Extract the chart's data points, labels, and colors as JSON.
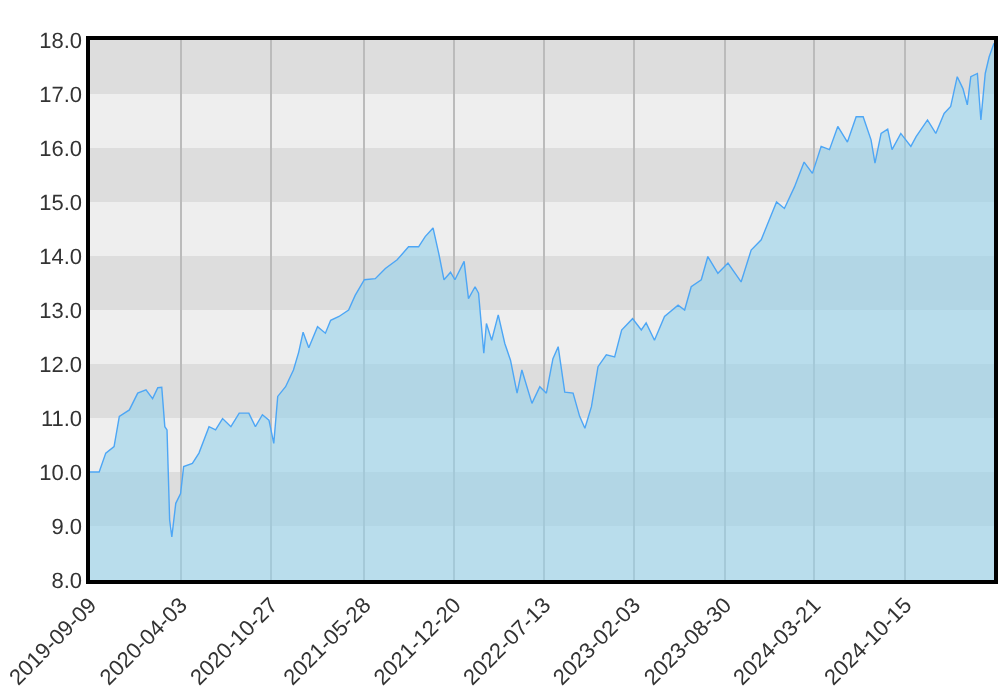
{
  "chart_data": {
    "type": "area",
    "x": [
      "2019-09-09",
      "2019-09-30",
      "2019-10-15",
      "2019-11-03",
      "2019-11-15",
      "2019-12-08",
      "2019-12-27",
      "2020-01-15",
      "2020-01-30",
      "2020-02-11",
      "2020-02-20",
      "2020-02-27",
      "2020-03-03",
      "2020-03-09",
      "2020-03-14",
      "2020-03-23",
      "2020-04-03",
      "2020-04-10",
      "2020-04-30",
      "2020-05-15",
      "2020-06-07",
      "2020-06-22",
      "2020-07-08",
      "2020-07-27",
      "2020-08-15",
      "2020-09-06",
      "2020-09-21",
      "2020-10-07",
      "2020-10-22",
      "2020-11-02",
      "2020-11-11",
      "2020-11-29",
      "2020-12-17",
      "2020-12-29",
      "2021-01-08",
      "2021-01-21",
      "2021-02-10",
      "2021-02-28",
      "2021-03-12",
      "2021-03-31",
      "2021-04-22",
      "2021-05-07",
      "2021-05-28",
      "2021-06-22",
      "2021-07-15",
      "2021-08-11",
      "2021-09-06",
      "2021-09-29",
      "2021-10-14",
      "2021-11-01",
      "2021-11-14",
      "2021-11-26",
      "2021-12-11",
      "2021-12-21",
      "2022-01-11",
      "2022-01-21",
      "2022-02-05",
      "2022-02-13",
      "2022-02-25",
      "2022-03-03",
      "2022-03-15",
      "2022-03-30",
      "2022-04-14",
      "2022-04-27",
      "2022-05-12",
      "2022-05-23",
      "2022-06-15",
      "2022-07-03",
      "2022-07-18",
      "2022-08-02",
      "2022-08-14",
      "2022-08-29",
      "2022-09-17",
      "2022-10-02",
      "2022-10-14",
      "2022-10-29",
      "2022-11-13",
      "2022-12-02",
      "2022-12-21",
      "2023-01-06",
      "2023-01-31",
      "2023-02-20",
      "2023-03-03",
      "2023-03-22",
      "2023-04-14",
      "2023-05-15",
      "2023-05-30",
      "2023-06-14",
      "2023-07-07",
      "2023-07-22",
      "2023-08-14",
      "2023-09-06",
      "2023-10-06",
      "2023-10-29",
      "2023-11-21",
      "2023-12-06",
      "2023-12-26",
      "2024-01-13",
      "2024-02-05",
      "2024-02-27",
      "2024-03-17",
      "2024-04-06",
      "2024-04-25",
      "2024-05-14",
      "2024-06-05",
      "2024-06-25",
      "2024-07-11",
      "2024-07-29",
      "2024-08-07",
      "2024-08-21",
      "2024-09-05",
      "2024-09-15",
      "2024-10-05",
      "2024-10-28",
      "2024-11-09",
      "2024-12-05",
      "2024-12-24",
      "2025-01-12",
      "2025-01-27",
      "2025-02-11",
      "2025-02-24",
      "2025-03-06",
      "2025-03-14",
      "2025-03-29",
      "2025-04-06",
      "2025-04-16",
      "2025-04-25",
      "2025-05-06"
    ],
    "series": [
      {
        "color": "#4da6f5",
        "values": [
          10.0,
          10.0,
          10.35,
          10.47,
          11.03,
          11.15,
          11.46,
          11.52,
          11.36,
          11.56,
          11.57,
          10.84,
          10.78,
          9.11,
          8.8,
          9.42,
          9.6,
          10.1,
          10.16,
          10.35,
          10.84,
          10.78,
          10.99,
          10.84,
          11.09,
          11.09,
          10.84,
          11.06,
          10.96,
          10.53,
          11.4,
          11.58,
          11.89,
          12.22,
          12.59,
          12.3,
          12.69,
          12.57,
          12.81,
          12.88,
          13.0,
          13.27,
          13.56,
          13.58,
          13.77,
          13.93,
          14.17,
          14.17,
          14.36,
          14.52,
          14.05,
          13.56,
          13.7,
          13.56,
          13.9,
          13.21,
          13.43,
          13.31,
          12.2,
          12.75,
          12.44,
          12.91,
          12.38,
          12.07,
          11.46,
          11.89,
          11.27,
          11.58,
          11.46,
          12.1,
          12.32,
          11.48,
          11.46,
          11.03,
          10.81,
          11.21,
          11.95,
          12.17,
          12.13,
          12.63,
          12.84,
          12.63,
          12.76,
          12.44,
          12.88,
          13.09,
          13.0,
          13.43,
          13.56,
          13.99,
          13.68,
          13.87,
          13.52,
          14.11,
          14.3,
          14.6,
          15.0,
          14.88,
          15.28,
          15.74,
          15.53,
          16.03,
          15.97,
          16.4,
          16.11,
          16.58,
          16.58,
          16.15,
          15.72,
          16.27,
          16.35,
          15.97,
          16.27,
          16.03,
          16.21,
          16.52,
          16.27,
          16.64,
          16.77,
          17.32,
          17.1,
          16.8,
          17.32,
          17.38,
          16.52,
          17.38,
          17.69,
          17.94
        ]
      }
    ],
    "xlim": [
      "2019-09-09",
      "2025-05-06"
    ],
    "xticks": [
      "2019-09-09",
      "2020-04-03",
      "2020-10-27",
      "2021-05-28",
      "2021-12-20",
      "2022-07-13",
      "2023-02-03",
      "2023-08-30",
      "2024-03-21",
      "2024-10-15"
    ],
    "ylim": [
      8,
      18
    ],
    "yticks": [
      {
        "value": 8,
        "label": "8.0"
      },
      {
        "value": 9,
        "label": "9.0"
      },
      {
        "value": 10,
        "label": "10.0"
      },
      {
        "value": 11,
        "label": "11.0"
      },
      {
        "value": 12,
        "label": "12.0"
      },
      {
        "value": 13,
        "label": "13.0"
      },
      {
        "value": 14,
        "label": "14.0"
      },
      {
        "value": 15,
        "label": "15.0"
      },
      {
        "value": 16,
        "label": "16.0"
      },
      {
        "value": 17,
        "label": "17.0"
      },
      {
        "value": 18,
        "label": "18.0"
      }
    ],
    "bands": [
      {
        "axis": "y",
        "from": 8,
        "to": 9,
        "color": "#eeeeee"
      },
      {
        "axis": "y",
        "from": 9,
        "to": 10,
        "color": "#dddddd"
      },
      {
        "axis": "y",
        "from": 10,
        "to": 11,
        "color": "#eeeeee"
      },
      {
        "axis": "y",
        "from": 11,
        "to": 12,
        "color": "#dddddd"
      },
      {
        "axis": "y",
        "from": 12,
        "to": 13,
        "color": "#eeeeee"
      },
      {
        "axis": "y",
        "from": 13,
        "to": 14,
        "color": "#dddddd"
      },
      {
        "axis": "y",
        "from": 14,
        "to": 15,
        "color": "#eeeeee"
      },
      {
        "axis": "y",
        "from": 15,
        "to": 16,
        "color": "#dddddd"
      },
      {
        "axis": "y",
        "from": 16,
        "to": 17,
        "color": "#eeeeee"
      },
      {
        "axis": "y",
        "from": 17,
        "to": 18,
        "color": "#dddddd"
      }
    ],
    "grid": "x"
  }
}
